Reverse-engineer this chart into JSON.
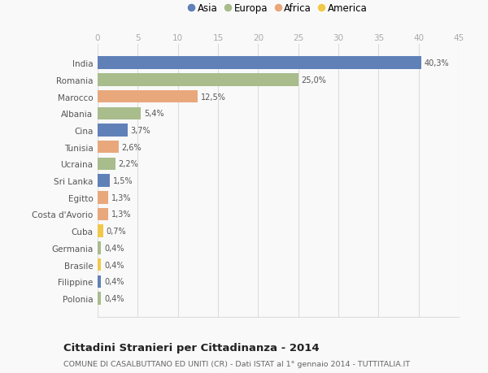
{
  "countries": [
    "India",
    "Romania",
    "Marocco",
    "Albania",
    "Cina",
    "Tunisia",
    "Ucraina",
    "Sri Lanka",
    "Egitto",
    "Costa d'Avorio",
    "Cuba",
    "Germania",
    "Brasile",
    "Filippine",
    "Polonia"
  ],
  "values": [
    40.3,
    25.0,
    12.5,
    5.4,
    3.7,
    2.6,
    2.2,
    1.5,
    1.3,
    1.3,
    0.7,
    0.4,
    0.4,
    0.4,
    0.4
  ],
  "labels": [
    "40,3%",
    "25,0%",
    "12,5%",
    "5,4%",
    "3,7%",
    "2,6%",
    "2,2%",
    "1,5%",
    "1,3%",
    "1,3%",
    "0,7%",
    "0,4%",
    "0,4%",
    "0,4%",
    "0,4%"
  ],
  "continents": [
    "Asia",
    "Europa",
    "Africa",
    "Europa",
    "Asia",
    "Africa",
    "Europa",
    "Asia",
    "Africa",
    "Africa",
    "America",
    "Europa",
    "America",
    "Asia",
    "Europa"
  ],
  "continent_colors": {
    "Asia": "#6080b8",
    "Europa": "#a8bc8c",
    "Africa": "#e8a87c",
    "America": "#f0c84c"
  },
  "legend_order": [
    "Asia",
    "Europa",
    "Africa",
    "America"
  ],
  "title": "Cittadini Stranieri per Cittadinanza - 2014",
  "subtitle": "COMUNE DI CASALBUTTANO ED UNITI (CR) - Dati ISTAT al 1° gennaio 2014 - TUTTITALIA.IT",
  "xlim": [
    0,
    45
  ],
  "xticks": [
    0,
    5,
    10,
    15,
    20,
    25,
    30,
    35,
    40,
    45
  ],
  "background_color": "#f9f9f9",
  "grid_color": "#dddddd"
}
